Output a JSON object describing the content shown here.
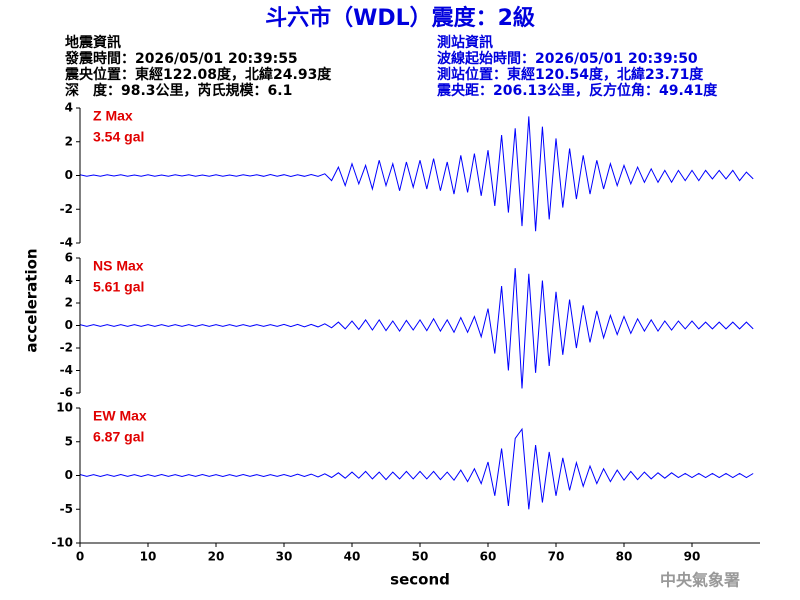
{
  "header": {
    "title": "斗六市（WDL）震度：2級",
    "event_info": [
      "地震資訊",
      "發震時間：2026/05/01 20:39:55",
      "震央位置：東經122.08度，北緯24.93度",
      "深　度：98.3公里，芮氏規模：6.1"
    ],
    "station_info": [
      "測站資訊",
      "波線起始時間：2026/05/01 20:39:50",
      "測站位置：東經120.54度，北緯23.71度",
      "震央距：206.13公里，反方位角：49.41度"
    ]
  },
  "footer": {
    "agency": "中央氣象署"
  },
  "chart_data": [
    {
      "type": "line",
      "label": "Z Max",
      "max_label": "3.54 gal",
      "color": "#0000ff",
      "xlim": [
        0,
        100
      ],
      "ylim": [
        -4,
        4
      ],
      "yticks": [
        -4,
        -2,
        0,
        2,
        4
      ],
      "x": [
        0,
        1,
        2,
        3,
        4,
        5,
        6,
        7,
        8,
        9,
        10,
        11,
        12,
        13,
        14,
        15,
        16,
        17,
        18,
        19,
        20,
        21,
        22,
        23,
        24,
        25,
        26,
        27,
        28,
        29,
        30,
        31,
        32,
        33,
        34,
        35,
        36,
        37,
        38,
        39,
        40,
        41,
        42,
        43,
        44,
        45,
        46,
        47,
        48,
        49,
        50,
        51,
        52,
        53,
        54,
        55,
        56,
        57,
        58,
        59,
        60,
        61,
        62,
        63,
        64,
        65,
        66,
        67,
        68,
        69,
        70,
        71,
        72,
        73,
        74,
        75,
        76,
        77,
        78,
        79,
        80,
        81,
        82,
        83,
        84,
        85,
        86,
        87,
        88,
        89,
        90,
        91,
        92,
        93,
        94,
        95,
        96,
        97,
        98,
        99
      ],
      "values": [
        0.04,
        -0.05,
        0.03,
        -0.04,
        0.05,
        -0.03,
        0.04,
        -0.05,
        0.03,
        -0.04,
        0.05,
        -0.04,
        0.03,
        -0.05,
        0.04,
        -0.03,
        0.05,
        -0.04,
        0.03,
        -0.05,
        0.04,
        -0.05,
        0.03,
        -0.04,
        0.05,
        -0.03,
        0.04,
        -0.05,
        0.06,
        -0.04,
        0.05,
        -0.06,
        0.04,
        -0.05,
        0.06,
        -0.05,
        0.1,
        -0.3,
        0.5,
        -0.6,
        0.7,
        -0.5,
        0.6,
        -0.8,
        0.9,
        -0.6,
        0.7,
        -0.9,
        0.8,
        -0.7,
        0.9,
        -0.8,
        1.0,
        -0.9,
        0.8,
        -1.1,
        1.2,
        -1.0,
        1.3,
        -1.2,
        1.5,
        -1.8,
        2.4,
        -2.2,
        2.8,
        -3.0,
        3.5,
        -3.3,
        2.9,
        -2.6,
        2.2,
        -1.9,
        1.6,
        -1.4,
        1.2,
        -1.1,
        0.9,
        -0.8,
        0.7,
        -0.6,
        0.6,
        -0.5,
        0.5,
        -0.4,
        0.4,
        -0.4,
        0.3,
        -0.4,
        0.3,
        -0.3,
        0.3,
        -0.3,
        0.3,
        -0.2,
        0.3,
        -0.2,
        0.3,
        -0.3,
        0.2,
        -0.2
      ]
    },
    {
      "type": "line",
      "label": "NS Max",
      "max_label": "5.61 gal",
      "color": "#0000ff",
      "ylabel": "acceleration",
      "xlim": [
        0,
        100
      ],
      "ylim": [
        -6,
        6
      ],
      "yticks": [
        -6,
        -4,
        -2,
        0,
        2,
        4,
        6
      ],
      "x": [
        0,
        1,
        2,
        3,
        4,
        5,
        6,
        7,
        8,
        9,
        10,
        11,
        12,
        13,
        14,
        15,
        16,
        17,
        18,
        19,
        20,
        21,
        22,
        23,
        24,
        25,
        26,
        27,
        28,
        29,
        30,
        31,
        32,
        33,
        34,
        35,
        36,
        37,
        38,
        39,
        40,
        41,
        42,
        43,
        44,
        45,
        46,
        47,
        48,
        49,
        50,
        51,
        52,
        53,
        54,
        55,
        56,
        57,
        58,
        59,
        60,
        61,
        62,
        63,
        64,
        65,
        66,
        67,
        68,
        69,
        70,
        71,
        72,
        73,
        74,
        75,
        76,
        77,
        78,
        79,
        80,
        81,
        82,
        83,
        84,
        85,
        86,
        87,
        88,
        89,
        90,
        91,
        92,
        93,
        94,
        95,
        96,
        97,
        98,
        99
      ],
      "values": [
        0.08,
        -0.07,
        0.08,
        -0.08,
        0.07,
        -0.08,
        0.08,
        -0.07,
        0.08,
        -0.08,
        0.07,
        -0.08,
        0.08,
        -0.07,
        0.08,
        -0.08,
        0.07,
        -0.08,
        0.08,
        -0.07,
        0.08,
        -0.08,
        0.07,
        -0.08,
        0.08,
        -0.07,
        0.08,
        -0.08,
        0.07,
        -0.08,
        0.1,
        -0.1,
        0.1,
        -0.12,
        0.1,
        -0.12,
        0.15,
        -0.2,
        0.3,
        -0.3,
        0.4,
        -0.35,
        0.5,
        -0.4,
        0.5,
        -0.45,
        0.4,
        -0.5,
        0.45,
        -0.4,
        0.5,
        -0.45,
        0.6,
        -0.5,
        0.5,
        -0.6,
        0.7,
        -0.6,
        0.8,
        -1.0,
        1.5,
        -2.5,
        3.5,
        -4.0,
        5.1,
        -5.6,
        4.6,
        -4.2,
        4.0,
        -3.6,
        3.0,
        -2.6,
        2.3,
        -2.0,
        1.8,
        -1.5,
        1.3,
        -1.1,
        0.9,
        -0.8,
        0.8,
        -0.7,
        0.6,
        -0.5,
        0.5,
        -0.5,
        0.4,
        -0.4,
        0.4,
        -0.3,
        0.4,
        -0.3,
        0.3,
        -0.3,
        0.3,
        -0.3,
        0.3,
        -0.3,
        0.3,
        -0.3
      ]
    },
    {
      "type": "line",
      "label": "EW Max",
      "max_label": "6.87 gal",
      "color": "#0000ff",
      "xlabel": "second",
      "xlim": [
        0,
        100
      ],
      "xticks": [
        0,
        10,
        20,
        30,
        40,
        50,
        60,
        70,
        80,
        90
      ],
      "ylim": [
        -10,
        10
      ],
      "yticks": [
        -10,
        -5,
        0,
        5,
        10
      ],
      "x": [
        0,
        1,
        2,
        3,
        4,
        5,
        6,
        7,
        8,
        9,
        10,
        11,
        12,
        13,
        14,
        15,
        16,
        17,
        18,
        19,
        20,
        21,
        22,
        23,
        24,
        25,
        26,
        27,
        28,
        29,
        30,
        31,
        32,
        33,
        34,
        35,
        36,
        37,
        38,
        39,
        40,
        41,
        42,
        43,
        44,
        45,
        46,
        47,
        48,
        49,
        50,
        51,
        52,
        53,
        54,
        55,
        56,
        57,
        58,
        59,
        60,
        61,
        62,
        63,
        64,
        65,
        66,
        67,
        68,
        69,
        70,
        71,
        72,
        73,
        74,
        75,
        76,
        77,
        78,
        79,
        80,
        81,
        82,
        83,
        84,
        85,
        86,
        87,
        88,
        89,
        90,
        91,
        92,
        93,
        94,
        95,
        96,
        97,
        98,
        99
      ],
      "values": [
        0.15,
        -0.12,
        0.14,
        -0.15,
        0.12,
        -0.14,
        0.15,
        -0.12,
        0.14,
        -0.15,
        0.12,
        -0.14,
        0.15,
        -0.12,
        0.14,
        -0.15,
        0.12,
        -0.14,
        0.15,
        -0.12,
        0.14,
        -0.15,
        0.12,
        -0.14,
        0.15,
        -0.12,
        0.14,
        -0.15,
        0.12,
        -0.14,
        0.15,
        -0.15,
        0.2,
        -0.15,
        0.2,
        -0.2,
        0.25,
        -0.3,
        0.4,
        -0.4,
        0.5,
        -0.4,
        0.6,
        -0.5,
        0.5,
        -0.6,
        0.5,
        -0.5,
        0.6,
        -0.5,
        0.6,
        -0.5,
        0.6,
        -0.6,
        0.5,
        -0.7,
        0.8,
        -0.9,
        1.0,
        -1.2,
        2.0,
        -3.0,
        4.0,
        -4.5,
        5.5,
        6.87,
        -5.0,
        4.5,
        -4.0,
        3.5,
        -3.0,
        2.6,
        -2.2,
        1.9,
        -1.6,
        1.4,
        -1.2,
        1.0,
        -0.9,
        0.8,
        -0.7,
        0.6,
        -0.6,
        0.5,
        -0.5,
        0.4,
        -0.4,
        0.4,
        -0.3,
        0.3,
        -0.3,
        0.3,
        -0.3,
        0.3,
        -0.3,
        0.3,
        -0.3,
        0.3,
        -0.3,
        0.3
      ]
    }
  ]
}
